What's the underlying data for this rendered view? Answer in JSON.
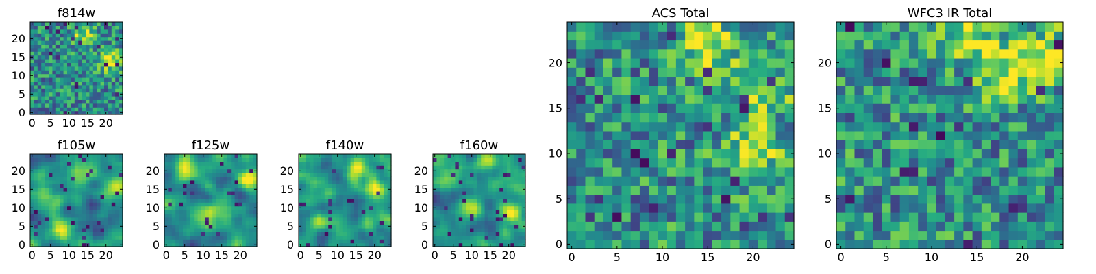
{
  "chart_data": [
    {
      "type": "heatmap",
      "title": "f814w",
      "xlim": [
        0,
        25
      ],
      "ylim": [
        0,
        25
      ],
      "grid": false,
      "xticks": [
        0,
        5,
        10,
        15,
        20
      ],
      "yticks": [
        0,
        5,
        10,
        15,
        20
      ],
      "colormap": "viridis",
      "texture": "noisy",
      "hotspots": [
        [
          14,
          21
        ],
        [
          21,
          14
        ]
      ]
    },
    {
      "type": "heatmap",
      "title": "f105w",
      "xlim": [
        0,
        25
      ],
      "ylim": [
        0,
        25
      ],
      "grid": false,
      "xticks": [
        0,
        5,
        10,
        15,
        20
      ],
      "yticks": [
        0,
        5,
        10,
        15,
        20
      ],
      "colormap": "viridis",
      "texture": "smooth",
      "hotspots": [
        [
          14,
          20
        ],
        [
          8,
          4
        ],
        [
          23,
          16
        ]
      ]
    },
    {
      "type": "heatmap",
      "title": "f125w",
      "xlim": [
        0,
        25
      ],
      "ylim": [
        0,
        25
      ],
      "grid": false,
      "xticks": [
        0,
        5,
        10,
        15,
        20
      ],
      "yticks": [
        0,
        5,
        10,
        15,
        20
      ],
      "colormap": "viridis",
      "texture": "smooth",
      "hotspots": [
        [
          22,
          18
        ],
        [
          12,
          8
        ],
        [
          5,
          20
        ]
      ]
    },
    {
      "type": "heatmap",
      "title": "f140w",
      "xlim": [
        0,
        25
      ],
      "ylim": [
        0,
        25
      ],
      "grid": false,
      "xticks": [
        0,
        5,
        10,
        15,
        20
      ],
      "yticks": [
        0,
        5,
        10,
        15,
        20
      ],
      "colormap": "viridis",
      "texture": "smooth",
      "hotspots": [
        [
          16,
          21
        ],
        [
          5,
          6
        ],
        [
          20,
          15
        ]
      ]
    },
    {
      "type": "heatmap",
      "title": "f160w",
      "xlim": [
        0,
        25
      ],
      "ylim": [
        0,
        25
      ],
      "grid": false,
      "xticks": [
        0,
        5,
        10,
        15,
        20
      ],
      "yticks": [
        0,
        5,
        10,
        15,
        20
      ],
      "colormap": "viridis",
      "texture": "smooth",
      "hotspots": [
        [
          14,
          22
        ],
        [
          10,
          11
        ],
        [
          21,
          8
        ]
      ]
    },
    {
      "type": "heatmap",
      "title": "ACS Total",
      "xlim": [
        0,
        25
      ],
      "ylim": [
        0,
        25
      ],
      "grid": false,
      "xticks": [
        0,
        5,
        10,
        15,
        20
      ],
      "yticks": [
        0,
        5,
        10,
        15,
        20
      ],
      "colormap": "viridis",
      "texture": "blocky",
      "hotspots": [
        [
          15,
          22
        ],
        [
          21,
          17
        ],
        [
          20,
          10
        ]
      ]
    },
    {
      "type": "heatmap",
      "title": "WFC3 IR Total",
      "xlim": [
        0,
        25
      ],
      "ylim": [
        0,
        25
      ],
      "grid": false,
      "xticks": [
        0,
        5,
        10,
        15,
        20
      ],
      "yticks": [
        0,
        5,
        10,
        15,
        20
      ],
      "colormap": "viridis",
      "texture": "blocky",
      "hotspots": [
        [
          14,
          23
        ],
        [
          18,
          19
        ],
        [
          23,
          21
        ]
      ]
    }
  ]
}
